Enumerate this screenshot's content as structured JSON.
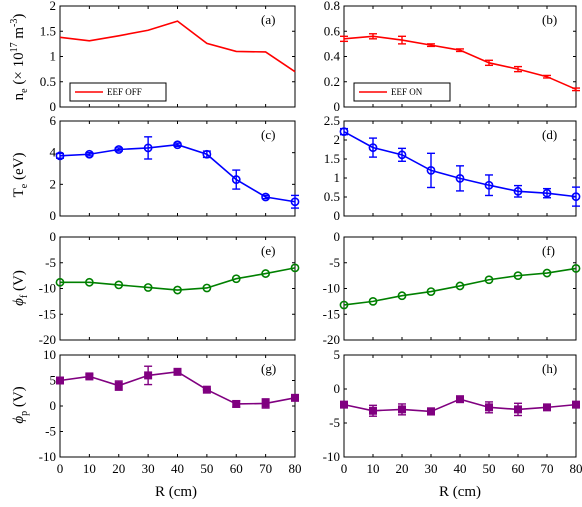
{
  "x_axis_label": "R (cm)",
  "chart_data": [
    {
      "id": "a",
      "type": "line",
      "panel_label": "(a)",
      "ylabel": "n_e (× 10^17 m^-3)",
      "xlim": [
        0,
        80
      ],
      "ylim": [
        0,
        2
      ],
      "xticks": [
        0,
        10,
        20,
        30,
        40,
        50,
        60,
        70,
        80
      ],
      "yticks": [
        0,
        0.5,
        1,
        1.5,
        2
      ],
      "ytick_labels": [
        "0",
        "0.5",
        "1",
        "1.5",
        "2"
      ],
      "show_xtick_labels": false,
      "color": "#ff0000",
      "marker": "none",
      "legend": {
        "label": "EEF OFF",
        "position": "bottom-left"
      },
      "series": [
        {
          "name": "EEF OFF",
          "x": [
            0,
            10,
            20,
            30,
            40,
            50,
            60,
            70,
            80
          ],
          "y": [
            1.38,
            1.31,
            1.41,
            1.52,
            1.7,
            1.26,
            1.1,
            1.09,
            0.7
          ]
        }
      ]
    },
    {
      "id": "b",
      "type": "line",
      "panel_label": "(b)",
      "xlim": [
        0,
        80
      ],
      "ylim": [
        0,
        0.8
      ],
      "xticks": [
        0,
        10,
        20,
        30,
        40,
        50,
        60,
        70,
        80
      ],
      "yticks": [
        0,
        0.2,
        0.4,
        0.6,
        0.8
      ],
      "ytick_labels": [
        "0",
        "0.2",
        "0.4",
        "0.6",
        "0.8"
      ],
      "show_xtick_labels": false,
      "color": "#ff0000",
      "marker": "none",
      "legend": {
        "label": "EEF ON",
        "position": "bottom-left"
      },
      "series": [
        {
          "name": "EEF ON",
          "x": [
            0,
            10,
            20,
            30,
            40,
            50,
            60,
            70,
            80
          ],
          "y": [
            0.54,
            0.56,
            0.53,
            0.49,
            0.45,
            0.35,
            0.3,
            0.24,
            0.14
          ],
          "err": [
            0.02,
            0.02,
            0.03,
            0.01,
            0.01,
            0.02,
            0.02,
            0.01,
            0.01
          ]
        }
      ]
    },
    {
      "id": "c",
      "type": "line",
      "panel_label": "(c)",
      "ylabel": "T_e (eV)",
      "xlim": [
        0,
        80
      ],
      "ylim": [
        0,
        6
      ],
      "xticks": [
        0,
        10,
        20,
        30,
        40,
        50,
        60,
        70,
        80
      ],
      "yticks": [
        0,
        2,
        4,
        6
      ],
      "ytick_labels": [
        "0",
        "2",
        "4",
        "6"
      ],
      "show_xtick_labels": false,
      "color": "#0000ff",
      "marker": "circle",
      "series": [
        {
          "x": [
            0,
            10,
            20,
            30,
            40,
            50,
            60,
            70,
            80
          ],
          "y": [
            3.8,
            3.9,
            4.2,
            4.3,
            4.5,
            3.9,
            2.3,
            1.2,
            0.9
          ],
          "err": [
            0.15,
            0.1,
            0.1,
            0.7,
            0.1,
            0.2,
            0.6,
            0.1,
            0.4
          ]
        }
      ]
    },
    {
      "id": "d",
      "type": "line",
      "panel_label": "(d)",
      "xlim": [
        0,
        80
      ],
      "ylim": [
        0,
        2.5
      ],
      "xticks": [
        0,
        10,
        20,
        30,
        40,
        50,
        60,
        70,
        80
      ],
      "yticks": [
        0,
        0.5,
        1,
        1.5,
        2,
        2.5
      ],
      "ytick_labels": [
        "0",
        "0.5",
        "1",
        "1.5",
        "2",
        "2.5"
      ],
      "show_xtick_labels": false,
      "color": "#0000ff",
      "marker": "circle",
      "series": [
        {
          "x": [
            0,
            10,
            20,
            30,
            40,
            50,
            60,
            70,
            80
          ],
          "y": [
            2.22,
            1.8,
            1.61,
            1.2,
            0.99,
            0.81,
            0.65,
            0.6,
            0.51
          ],
          "err": [
            0.08,
            0.25,
            0.17,
            0.45,
            0.33,
            0.27,
            0.15,
            0.12,
            0.25
          ]
        }
      ]
    },
    {
      "id": "e",
      "type": "line",
      "panel_label": "(e)",
      "ylabel": "φ_f (V)",
      "xlim": [
        0,
        80
      ],
      "ylim": [
        -20,
        0
      ],
      "xticks": [
        0,
        10,
        20,
        30,
        40,
        50,
        60,
        70,
        80
      ],
      "yticks": [
        -20,
        -15,
        -10,
        -5,
        0
      ],
      "ytick_labels": [
        "-20",
        "-15",
        "-10",
        "-5",
        "0"
      ],
      "show_xtick_labels": false,
      "color": "#008000",
      "marker": "circle",
      "series": [
        {
          "x": [
            0,
            10,
            20,
            30,
            40,
            50,
            60,
            70,
            80
          ],
          "y": [
            -8.8,
            -8.8,
            -9.3,
            -9.8,
            -10.3,
            -9.9,
            -8.1,
            -7.1,
            -6.0
          ]
        }
      ]
    },
    {
      "id": "f",
      "type": "line",
      "panel_label": "(f)",
      "xlim": [
        0,
        80
      ],
      "ylim": [
        -20,
        0
      ],
      "xticks": [
        0,
        10,
        20,
        30,
        40,
        50,
        60,
        70,
        80
      ],
      "yticks": [
        -20,
        -15,
        -10,
        -5,
        0
      ],
      "ytick_labels": [
        "-20",
        "-15",
        "-10",
        "-5",
        "0"
      ],
      "show_xtick_labels": false,
      "color": "#008000",
      "marker": "circle",
      "series": [
        {
          "x": [
            0,
            10,
            20,
            30,
            40,
            50,
            60,
            70,
            80
          ],
          "y": [
            -13.2,
            -12.5,
            -11.4,
            -10.6,
            -9.5,
            -8.3,
            -7.5,
            -7.0,
            -6.1
          ]
        }
      ]
    },
    {
      "id": "g",
      "type": "line",
      "panel_label": "(g)",
      "ylabel": "φ_p (V)",
      "xlim": [
        0,
        80
      ],
      "ylim": [
        -10,
        10
      ],
      "xticks": [
        0,
        10,
        20,
        30,
        40,
        50,
        60,
        70,
        80
      ],
      "yticks": [
        -10,
        -5,
        0,
        5,
        10
      ],
      "ytick_labels": [
        "-10",
        "-5",
        "0",
        "5",
        "10"
      ],
      "show_xtick_labels": true,
      "color": "#800080",
      "marker": "square",
      "series": [
        {
          "x": [
            0,
            10,
            20,
            30,
            40,
            50,
            60,
            70,
            80
          ],
          "y": [
            5.0,
            5.8,
            4.0,
            6.0,
            6.7,
            3.2,
            0.4,
            0.5,
            1.6
          ],
          "err": [
            0.2,
            0.4,
            0.9,
            1.8,
            0.5,
            0.1,
            0.6,
            0.9,
            0.2
          ]
        }
      ]
    },
    {
      "id": "h",
      "type": "line",
      "panel_label": "(h)",
      "xlim": [
        0,
        80
      ],
      "ylim": [
        -10,
        5
      ],
      "xticks": [
        0,
        10,
        20,
        30,
        40,
        50,
        60,
        70,
        80
      ],
      "yticks": [
        -10,
        -5,
        0,
        5
      ],
      "ytick_labels": [
        "-10",
        "-5",
        "0",
        "5"
      ],
      "show_xtick_labels": true,
      "color": "#800080",
      "marker": "square",
      "series": [
        {
          "x": [
            0,
            10,
            20,
            30,
            40,
            50,
            60,
            70,
            80
          ],
          "y": [
            -2.3,
            -3.2,
            -3.0,
            -3.3,
            -1.5,
            -2.7,
            -3.0,
            -2.7,
            -2.3
          ],
          "err": [
            0.2,
            0.8,
            0.8,
            0.5,
            0.2,
            0.8,
            0.9,
            0.4,
            0.2
          ]
        }
      ]
    }
  ]
}
